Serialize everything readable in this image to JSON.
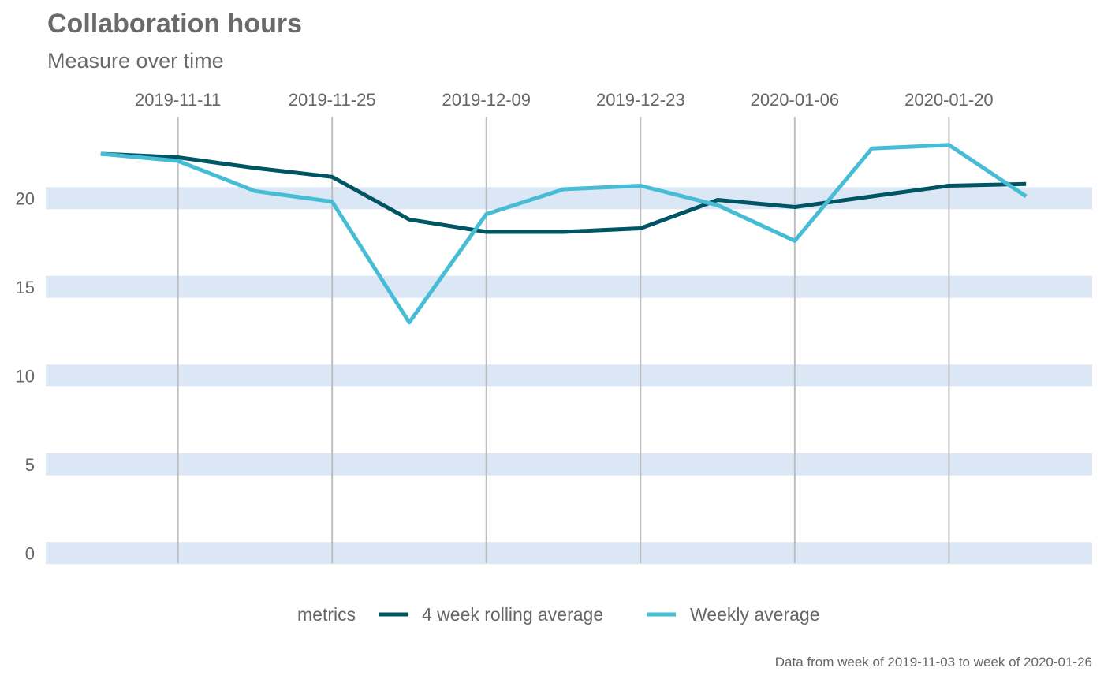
{
  "chart_data": {
    "type": "line",
    "title": "Collaboration hours",
    "subtitle": "Measure over time",
    "caption": "Data from week of 2019-11-03 to week of 2020-01-26",
    "x": [
      "2019-11-04",
      "2019-11-11",
      "2019-11-18",
      "2019-11-25",
      "2019-12-02",
      "2019-12-09",
      "2019-12-16",
      "2019-12-23",
      "2019-12-30",
      "2020-01-06",
      "2020-01-13",
      "2020-01-20",
      "2020-01-27"
    ],
    "x_tick_labels": [
      "2019-11-11",
      "2019-11-25",
      "2019-12-09",
      "2019-12-23",
      "2020-01-06",
      "2020-01-20"
    ],
    "x_axis_position": "top",
    "xlim": [
      "2019-10-30",
      "2020-02-02"
    ],
    "ylim": [
      -0.3,
      24.5
    ],
    "y_ticks": [
      0,
      5,
      10,
      15,
      20
    ],
    "y_grid_style": "horizontal bands",
    "x_grid_style": "vertical lines",
    "legend": {
      "title": "metrics",
      "position": "bottom"
    },
    "series": [
      {
        "name": "4 week rolling average",
        "color": "#005564",
        "values": [
          22.5,
          22.3,
          21.7,
          21.2,
          18.8,
          18.1,
          18.1,
          18.3,
          19.9,
          19.5,
          20.1,
          20.7,
          20.8
        ]
      },
      {
        "name": "Weekly average",
        "color": "#46BDD4",
        "values": [
          22.5,
          22.1,
          20.4,
          19.8,
          13.0,
          19.1,
          20.5,
          20.7,
          19.6,
          17.6,
          22.8,
          23.0,
          20.1
        ]
      }
    ],
    "colors": {
      "band": "#DCE7F6",
      "grid_line": "#BEBEBE",
      "text": "#666666"
    }
  }
}
